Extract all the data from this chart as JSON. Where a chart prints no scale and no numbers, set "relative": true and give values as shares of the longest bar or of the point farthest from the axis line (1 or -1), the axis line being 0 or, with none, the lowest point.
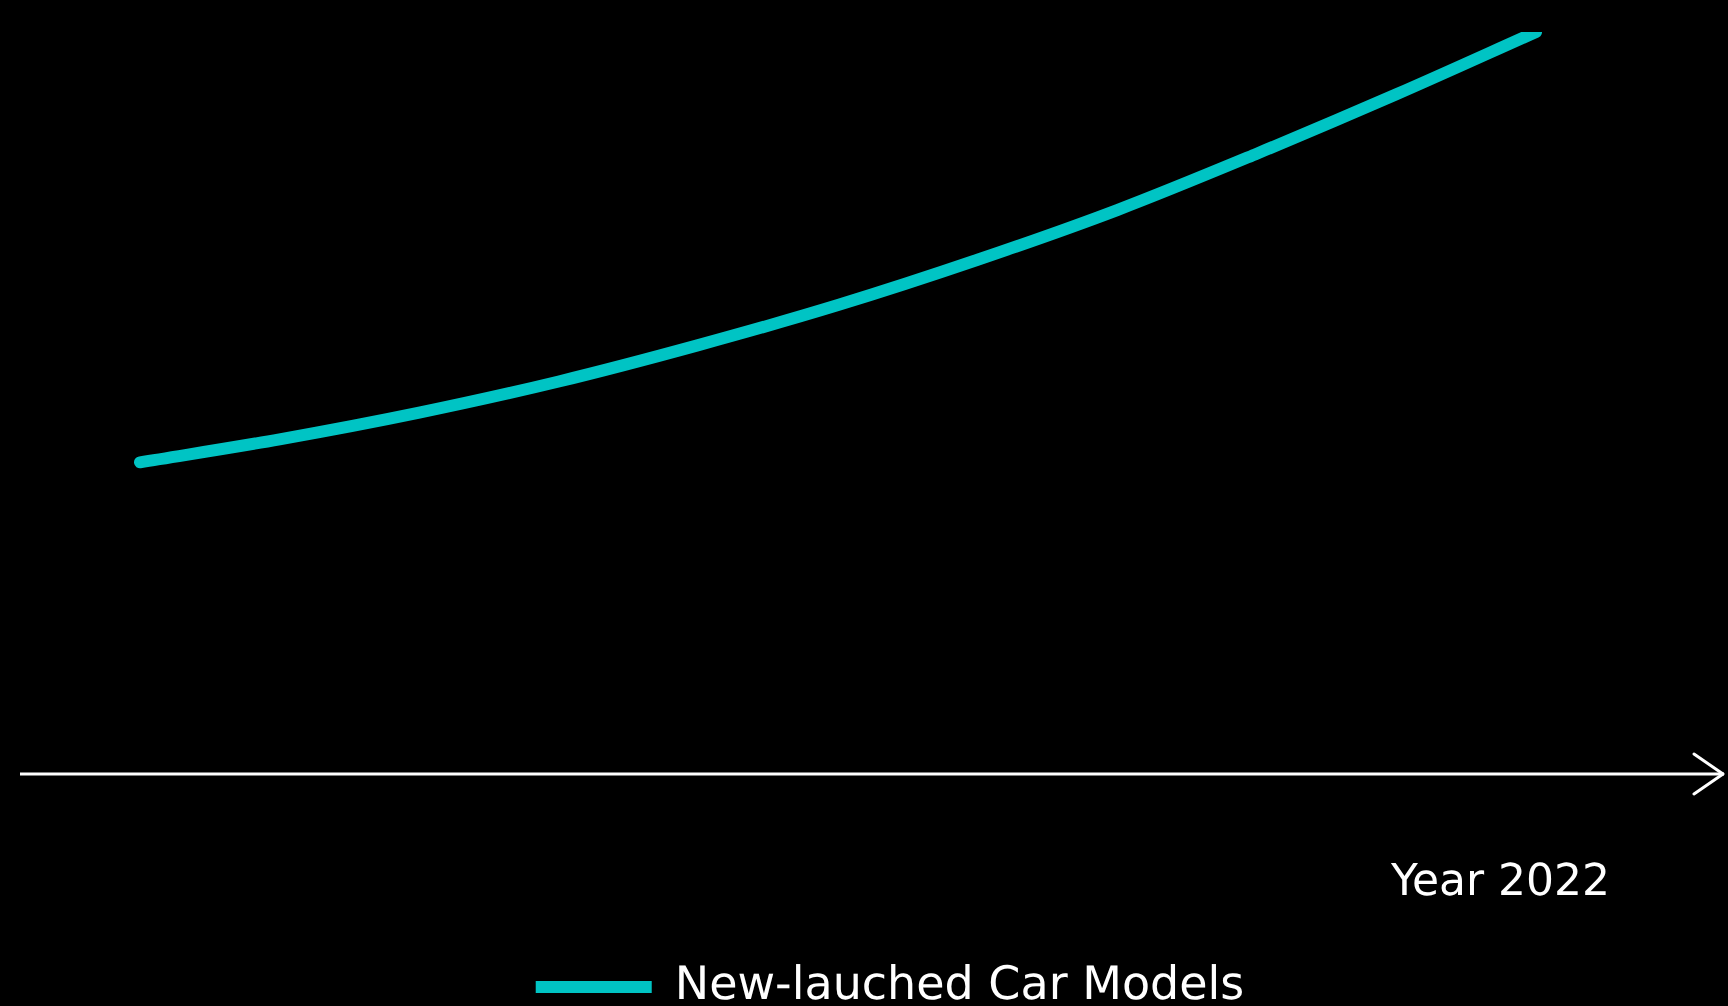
{
  "chart_data": {
    "type": "line",
    "xlabel": "Year 2022",
    "categories": [
      null,
      null,
      null,
      null,
      null,
      null,
      null,
      null,
      null,
      null,
      null
    ],
    "series": [
      {
        "name": "New-lauched Car Models",
        "color": "#00c4c4",
        "values": [
          0.42,
          0.451,
          0.487,
          0.529,
          0.578,
          0.632,
          0.693,
          0.76,
          0.836,
          0.916,
          1
        ]
      }
    ],
    "relative": true,
    "legend": "bottom",
    "marker": "none",
    "line_style": "solid"
  }
}
